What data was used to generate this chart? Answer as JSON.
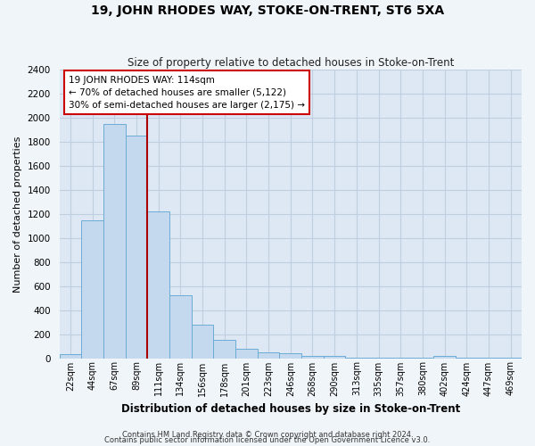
{
  "title": "19, JOHN RHODES WAY, STOKE-ON-TRENT, ST6 5XA",
  "subtitle": "Size of property relative to detached houses in Stoke-on-Trent",
  "xlabel": "Distribution of detached houses by size in Stoke-on-Trent",
  "ylabel": "Number of detached properties",
  "bar_labels": [
    "22sqm",
    "44sqm",
    "67sqm",
    "89sqm",
    "111sqm",
    "134sqm",
    "156sqm",
    "178sqm",
    "201sqm",
    "223sqm",
    "246sqm",
    "268sqm",
    "290sqm",
    "313sqm",
    "335sqm",
    "357sqm",
    "380sqm",
    "402sqm",
    "424sqm",
    "447sqm",
    "469sqm"
  ],
  "bar_values": [
    30,
    1150,
    1950,
    1850,
    1220,
    520,
    275,
    150,
    80,
    45,
    40,
    15,
    20,
    5,
    5,
    5,
    5,
    20,
    5,
    5,
    5
  ],
  "bar_color": "#c5d9ee",
  "bar_edge_color": "#6badd6",
  "grid_color": "#c0cfe0",
  "background_color": "#dde8f4",
  "vline_color": "#aa0000",
  "annotation_line1": "19 JOHN RHODES WAY: 114sqm",
  "annotation_line2": "← 70% of detached houses are smaller (5,122)",
  "annotation_line3": "30% of semi-detached houses are larger (2,175) →",
  "annotation_box_color": "#ffffff",
  "annotation_box_edge": "#cc0000",
  "ylim": [
    0,
    2400
  ],
  "yticks": [
    0,
    200,
    400,
    600,
    800,
    1000,
    1200,
    1400,
    1600,
    1800,
    2000,
    2200,
    2400
  ],
  "footer1": "Contains HM Land Registry data © Crown copyright and database right 2024.",
  "footer2": "Contains public sector information licensed under the Open Government Licence v3.0.",
  "fig_bg": "#f0f5fa"
}
